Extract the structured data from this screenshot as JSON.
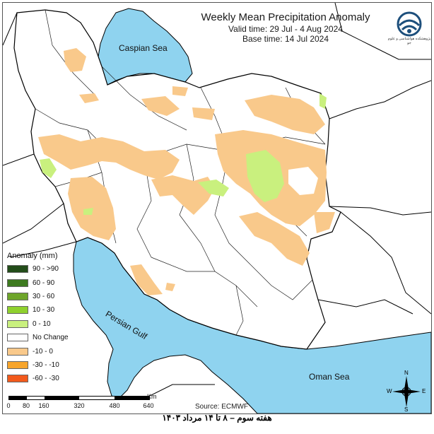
{
  "title": "Weekly Mean Precipitation Anomaly",
  "valid_time": "Valid time: 29 Jul - 4 Aug 2024",
  "base_time": "Base time: 14 Jul 2024",
  "logo_text": "پژوهشکده هواشناسی و علوم جو",
  "water_labels": {
    "caspian": "Caspian Sea",
    "gulf": "Persian Gulf",
    "oman": "Oman Sea"
  },
  "legend": {
    "title": "Anomaly (mm)",
    "items": [
      {
        "label": "90 - >90",
        "color": "#234d1a"
      },
      {
        "label": "60 - 90",
        "color": "#3d7a1f"
      },
      {
        "label": "30 - 60",
        "color": "#6ea52a"
      },
      {
        "label": "10 - 30",
        "color": "#8fd12e"
      },
      {
        "label": "0 - 10",
        "color": "#c9f07e"
      },
      {
        "label": "No Change",
        "color": "#ffffff"
      },
      {
        "label": "-10 - 0",
        "color": "#f9c98b"
      },
      {
        "label": "-30 - -10",
        "color": "#f7a52c"
      },
      {
        "label": "-60 - -30",
        "color": "#f25a1c"
      }
    ]
  },
  "scale": {
    "unit": "Km",
    "ticks": [
      "0",
      "80",
      "160",
      "320",
      "480",
      "640"
    ]
  },
  "source": "Source: ECMWF",
  "compass": {
    "n": "N",
    "s": "S",
    "e": "E",
    "w": "W"
  },
  "caption": "هفته سوم – ۸ تا ۱۴ مرداد ۱۴۰۳",
  "colors": {
    "water": "#8fd3ef",
    "land": "#ffffff",
    "border": "#000000",
    "negative_light": "#f9c98b",
    "positive_light": "#c9f07e"
  }
}
